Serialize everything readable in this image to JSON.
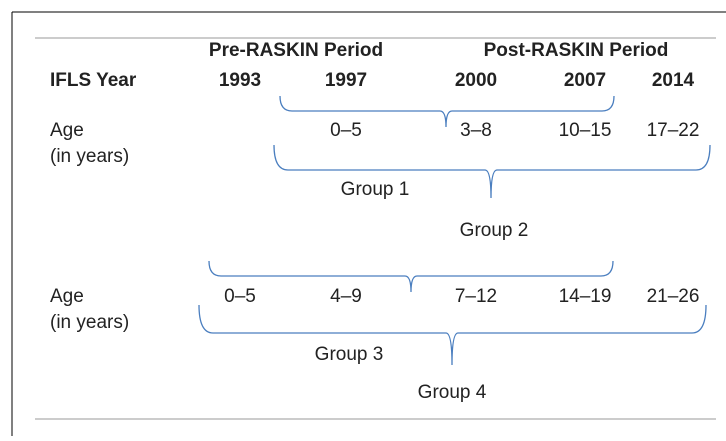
{
  "header": {
    "periods": [
      "Pre-RASKIN Period",
      "Post-RASKIN Period"
    ],
    "row_label": "IFLS Year",
    "years": [
      "1993",
      "1997",
      "2000",
      "2007",
      "2014"
    ]
  },
  "blocks": [
    {
      "label": [
        "Age",
        "(in years)"
      ],
      "ages": [
        "0–5",
        "3–8",
        "10–15",
        "17–22"
      ],
      "groups": [
        "Group 1",
        "Group 2"
      ]
    },
    {
      "label": [
        "Age",
        "(in years)"
      ],
      "ages": [
        "0–5",
        "4–9",
        "7–12",
        "14–19",
        "21–26"
      ],
      "groups": [
        "Group 3",
        "Group 4"
      ]
    }
  ]
}
